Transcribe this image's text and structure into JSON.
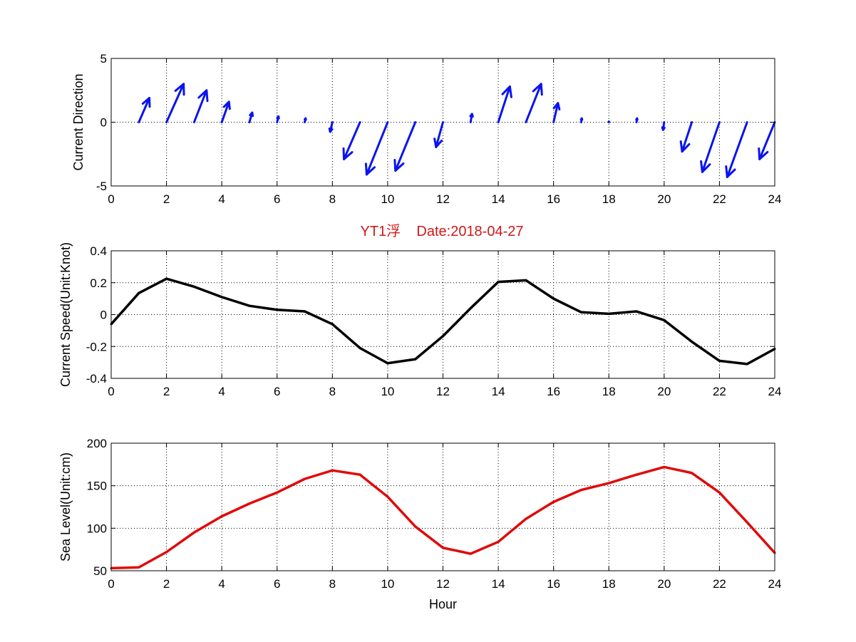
{
  "colors": {
    "direction": "#0a14ee",
    "speed": "#000000",
    "sea_level": "#e00a0a",
    "title": "#d01818"
  },
  "chart_data": [
    {
      "type": "quiver",
      "ylabel": "Current Direction",
      "xlim": [
        0,
        24
      ],
      "ylim": [
        -5,
        5
      ],
      "xticks": [
        0,
        2,
        4,
        6,
        8,
        10,
        12,
        14,
        16,
        18,
        20,
        22,
        24
      ],
      "yticks": [
        -5,
        0,
        5
      ],
      "grid": true,
      "vectors": [
        {
          "x": 1,
          "u": 0.38,
          "v": 1.9
        },
        {
          "x": 2,
          "u": 0.62,
          "v": 3.0
        },
        {
          "x": 3,
          "u": 0.45,
          "v": 2.5
        },
        {
          "x": 4,
          "u": 0.26,
          "v": 1.6
        },
        {
          "x": 5,
          "u": 0.1,
          "v": 0.75
        },
        {
          "x": 6,
          "u": 0.05,
          "v": 0.45
        },
        {
          "x": 7,
          "u": 0.03,
          "v": 0.3
        },
        {
          "x": 8,
          "u": -0.08,
          "v": -0.75
        },
        {
          "x": 9,
          "u": -0.58,
          "v": -2.9
        },
        {
          "x": 10,
          "u": -0.76,
          "v": -4.1
        },
        {
          "x": 11,
          "u": -0.72,
          "v": -3.8
        },
        {
          "x": 12,
          "u": -0.25,
          "v": -1.95
        },
        {
          "x": 13,
          "u": 0.05,
          "v": 0.65
        },
        {
          "x": 14,
          "u": 0.42,
          "v": 2.8
        },
        {
          "x": 15,
          "u": 0.55,
          "v": 3.0
        },
        {
          "x": 16,
          "u": 0.16,
          "v": 1.5
        },
        {
          "x": 17,
          "u": 0.02,
          "v": 0.3
        },
        {
          "x": 18,
          "u": 0.0,
          "v": 0.05
        },
        {
          "x": 19,
          "u": 0.02,
          "v": 0.3
        },
        {
          "x": 20,
          "u": -0.04,
          "v": -0.6
        },
        {
          "x": 21,
          "u": -0.35,
          "v": -2.3
        },
        {
          "x": 22,
          "u": -0.62,
          "v": -3.9
        },
        {
          "x": 23,
          "u": -0.72,
          "v": -4.3
        },
        {
          "x": 24,
          "u": -0.55,
          "v": -2.9
        }
      ]
    },
    {
      "type": "line",
      "title": "YT1浮    Date:2018-04-27",
      "ylabel": "Current Speed(Unit:Knot)",
      "xlim": [
        0,
        24
      ],
      "ylim": [
        -0.4,
        0.4
      ],
      "xticks": [
        0,
        2,
        4,
        6,
        8,
        10,
        12,
        14,
        16,
        18,
        20,
        22,
        24
      ],
      "yticks": [
        -0.4,
        -0.2,
        0,
        0.2,
        0.4
      ],
      "ytick_labels": [
        "-0.4",
        "-0.2",
        "0",
        "0.2",
        "0.4"
      ],
      "grid": true,
      "x": [
        0,
        1,
        2,
        3,
        4,
        5,
        6,
        7,
        8,
        9,
        10,
        11,
        12,
        13,
        14,
        15,
        16,
        17,
        18,
        19,
        20,
        21,
        22,
        23,
        24
      ],
      "y": [
        -0.06,
        0.135,
        0.225,
        0.175,
        0.11,
        0.055,
        0.03,
        0.02,
        -0.06,
        -0.21,
        -0.305,
        -0.28,
        -0.135,
        0.04,
        0.205,
        0.215,
        0.1,
        0.015,
        0.005,
        0.02,
        -0.035,
        -0.17,
        -0.29,
        -0.31,
        -0.215
      ]
    },
    {
      "type": "line",
      "ylabel": "Sea Level(Unit:cm)",
      "xlabel": "Hour",
      "xlim": [
        0,
        24
      ],
      "ylim": [
        50,
        200
      ],
      "xticks": [
        0,
        2,
        4,
        6,
        8,
        10,
        12,
        14,
        16,
        18,
        20,
        22,
        24
      ],
      "yticks": [
        50,
        100,
        150,
        200
      ],
      "grid": true,
      "x": [
        0,
        1,
        2,
        3,
        4,
        5,
        6,
        7,
        8,
        9,
        10,
        11,
        12,
        13,
        14,
        15,
        16,
        17,
        18,
        19,
        20,
        21,
        22,
        23,
        24
      ],
      "y": [
        53,
        54,
        72,
        95,
        114,
        129,
        142,
        158,
        168,
        163,
        137,
        102,
        77,
        70,
        84,
        111,
        131,
        145,
        153,
        163,
        172,
        165,
        142,
        107,
        71
      ]
    }
  ]
}
